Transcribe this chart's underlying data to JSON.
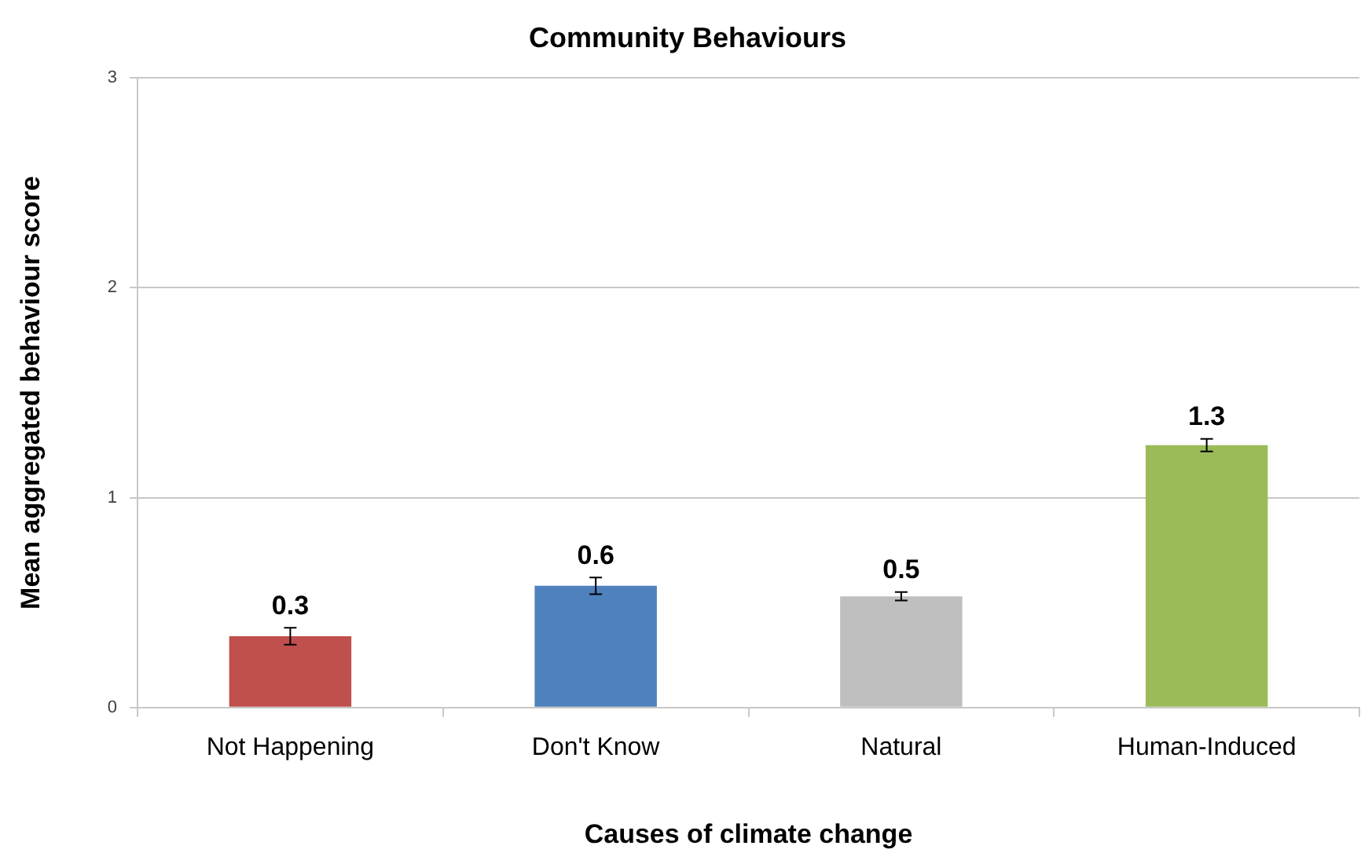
{
  "chart_data": {
    "type": "bar",
    "title": "Community Behaviours",
    "xlabel": "Causes of climate change",
    "ylabel": "Mean aggregated behaviour score",
    "categories": [
      "Not Happening",
      "Don't Know",
      "Natural",
      "Human-Induced"
    ],
    "values": [
      0.34,
      0.58,
      0.53,
      1.25
    ],
    "colors": [
      "#c0504d",
      "#4f81bd",
      "#bfbfbf",
      "#9bbb59"
    ],
    "errors": [
      0.04,
      0.04,
      0.02,
      0.03
    ],
    "value_labels": [
      "0.3",
      "0.6",
      "0.5",
      "1.3"
    ],
    "ylim": [
      0,
      3
    ],
    "yticks": [
      0,
      1,
      2,
      3
    ],
    "grid": "y",
    "legend": false
  }
}
